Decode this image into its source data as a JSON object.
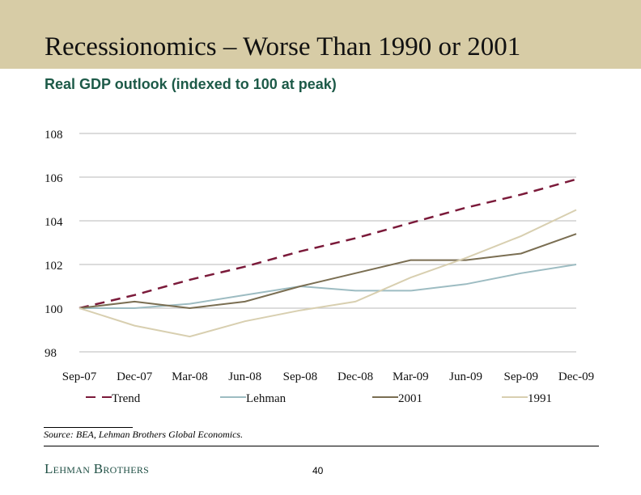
{
  "header": {
    "title": "Recessionomics – Worse Than 1990 or 2001",
    "subtitle": "Real GDP outlook (indexed to 100 at peak)"
  },
  "chart_data": {
    "type": "line",
    "categories": [
      "Sep-07",
      "Dec-07",
      "Mar-08",
      "Jun-08",
      "Sep-08",
      "Dec-08",
      "Mar-09",
      "Jun-09",
      "Sep-09",
      "Dec-09"
    ],
    "ylim": [
      98,
      108
    ],
    "yticks": [
      98,
      100,
      102,
      104,
      106,
      108
    ],
    "grid": true,
    "legend": "bottom",
    "series": [
      {
        "name": "Trend",
        "color": "#7b1a3a",
        "dashed": true,
        "values": [
          100,
          100.6,
          101.3,
          101.9,
          102.6,
          103.2,
          103.9,
          104.6,
          105.2,
          105.9
        ]
      },
      {
        "name": "Lehman",
        "color": "#9dbcc2",
        "values": [
          100,
          100,
          100.2,
          100.6,
          101.0,
          100.8,
          100.8,
          101.1,
          101.6,
          102.0
        ]
      },
      {
        "name": "2001",
        "color": "#7a6e52",
        "values": [
          100,
          100.3,
          100,
          100.3,
          101.0,
          101.6,
          102.2,
          102.2,
          102.5,
          103.4
        ]
      },
      {
        "name": "1991",
        "color": "#d8cfb0",
        "values": [
          100,
          99.2,
          98.7,
          99.4,
          99.9,
          100.3,
          101.4,
          102.3,
          103.3,
          104.5
        ]
      }
    ]
  },
  "footer": {
    "source": "Source: BEA, Lehman Brothers Global Economics.",
    "logo": "Lehman Brothers",
    "page": "40"
  }
}
